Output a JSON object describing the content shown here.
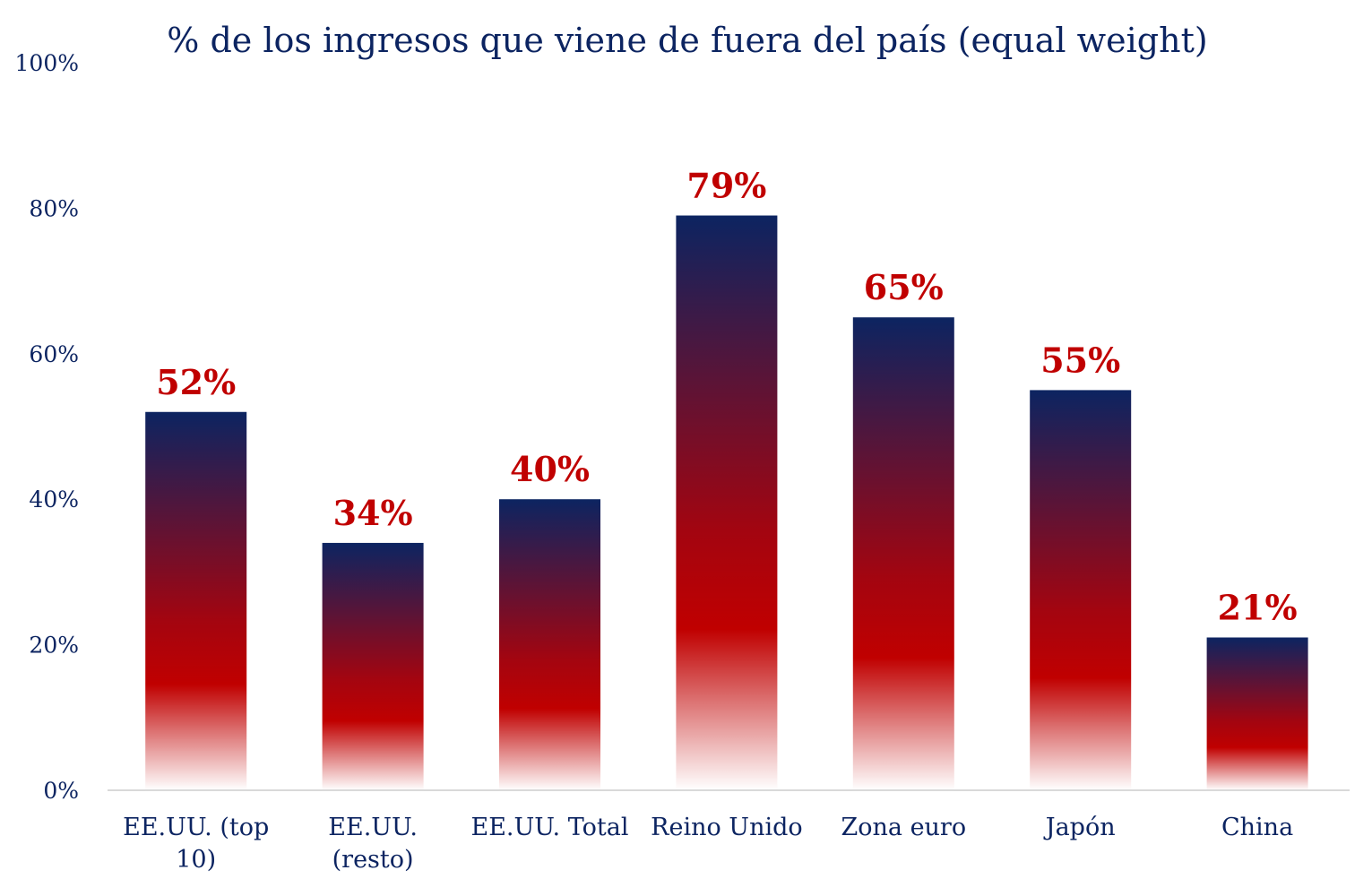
{
  "colors": {
    "navy": "#0c2461",
    "red": "#c00000",
    "axis": "#d9d9d9"
  },
  "chart_data": {
    "type": "bar",
    "title": "% de los ingresos que viene de fuera del país (equal weight)",
    "xlabel": "",
    "ylabel": "",
    "ylim": [
      0,
      100
    ],
    "yticks": [
      0,
      20,
      40,
      60,
      80,
      100
    ],
    "ytick_labels": [
      "0%",
      "20%",
      "40%",
      "60%",
      "80%",
      "100%"
    ],
    "grid": false,
    "legend": "none",
    "categories": [
      [
        "EE.UU. (top",
        "10)"
      ],
      [
        "EE.UU.",
        "(resto)"
      ],
      [
        "EE.UU. Total"
      ],
      [
        "Reino Unido"
      ],
      [
        "Zona euro"
      ],
      [
        "Japón"
      ],
      [
        "China"
      ]
    ],
    "values": [
      52,
      34,
      40,
      79,
      65,
      55,
      21
    ],
    "value_labels": [
      "52%",
      "34%",
      "40%",
      "79%",
      "65%",
      "55%",
      "21%"
    ]
  }
}
